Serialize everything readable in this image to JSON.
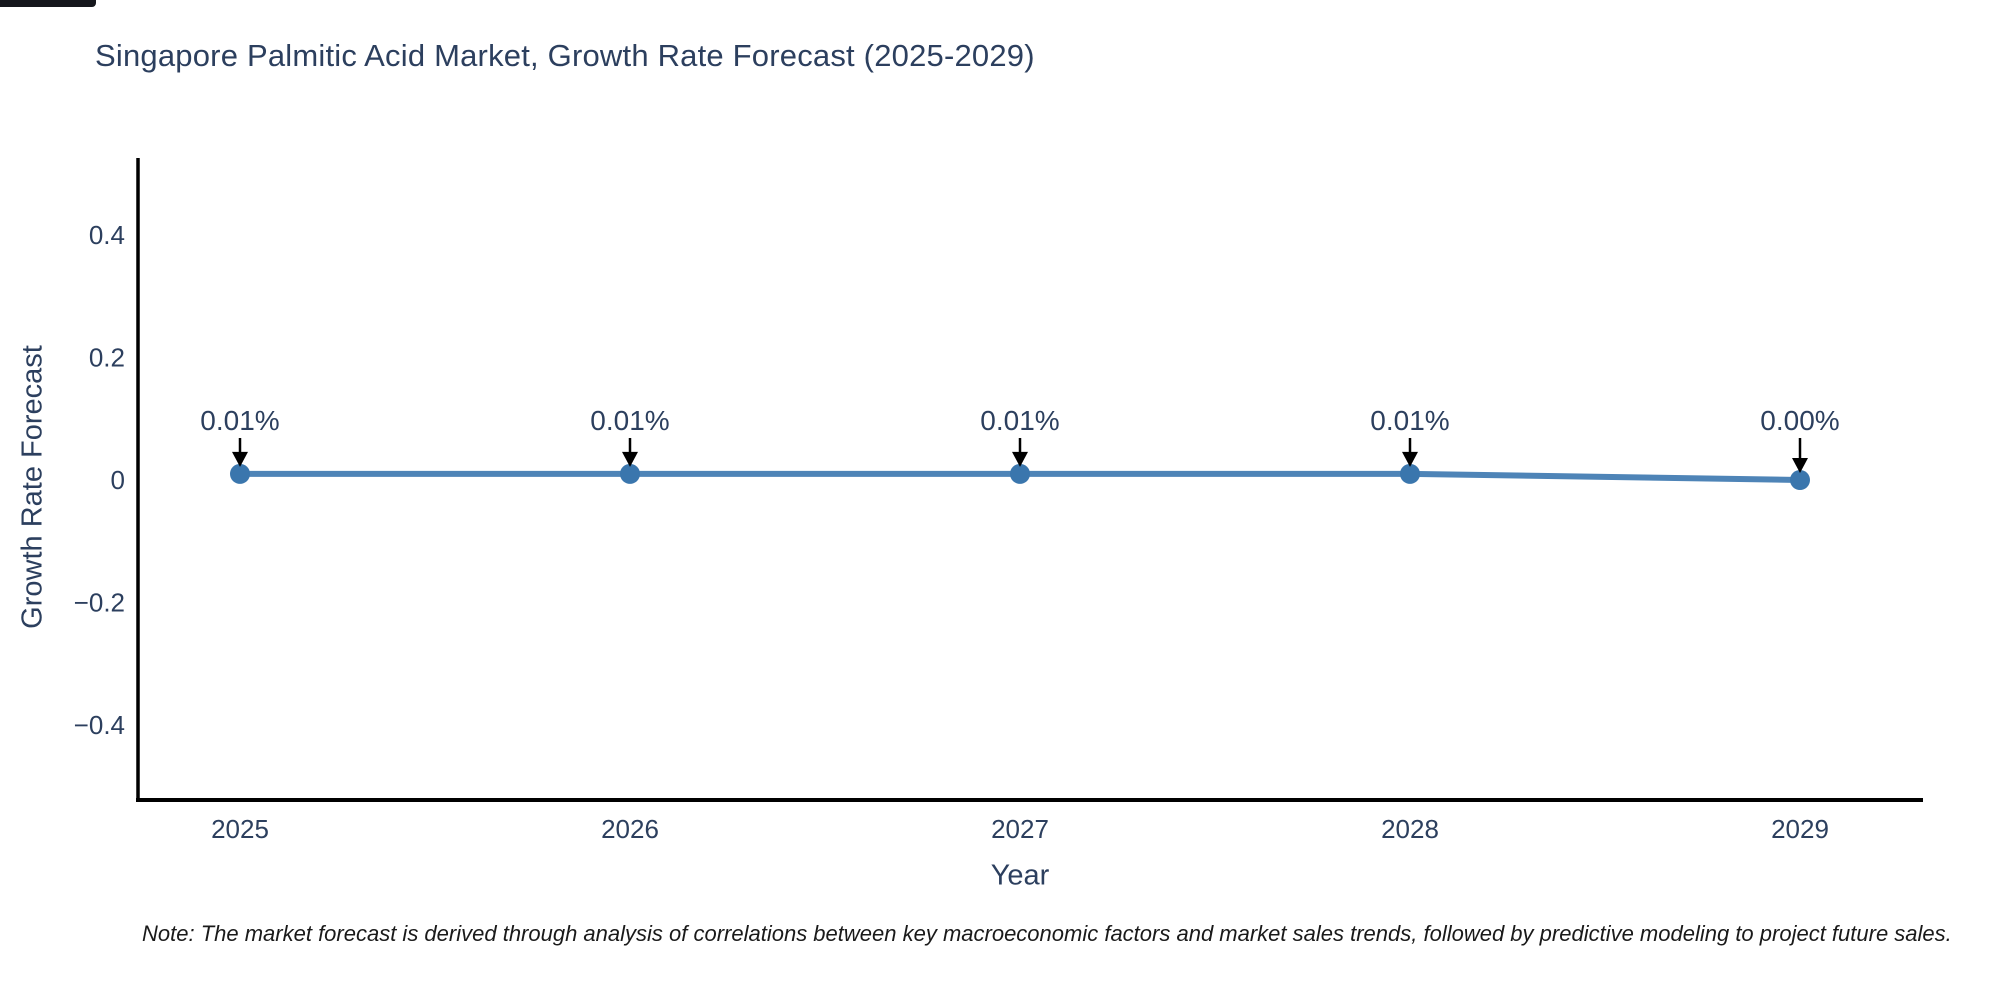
{
  "note": "Note: The market forecast is derived through analysis of correlations between key macroeconomic factors and market sales trends, followed by predictive modeling to project future sales.",
  "chart_data": {
    "type": "line",
    "title": "Singapore Palmitic Acid Market, Growth Rate Forecast (2025-2029)",
    "xlabel": "Year",
    "ylabel": "Growth Rate Forecast",
    "x": [
      2025,
      2026,
      2027,
      2028,
      2029
    ],
    "series": [
      {
        "name": "Growth Rate Forecast",
        "values": [
          0.01,
          0.01,
          0.01,
          0.01,
          0.0
        ],
        "unit": "%"
      }
    ],
    "data_labels": [
      "0.01%",
      "0.01%",
      "0.01%",
      "0.01%",
      "0.00%"
    ],
    "xtick_labels": [
      "2025",
      "2026",
      "2027",
      "2028",
      "2029"
    ],
    "yticks": [
      0.4,
      0.2,
      0,
      -0.2,
      -0.4
    ],
    "ytick_labels": [
      "0.4",
      "0.2",
      "0",
      "−0.2",
      "−0.4"
    ],
    "ylim": [
      -0.52,
      0.52
    ],
    "grid": false,
    "legend": "none",
    "marker": "circle",
    "colors": {
      "line": "#4e84b7",
      "marker": "#3a76ad",
      "spine": "#000000",
      "text": "#2c3f5e",
      "arrow": "#000000"
    }
  }
}
